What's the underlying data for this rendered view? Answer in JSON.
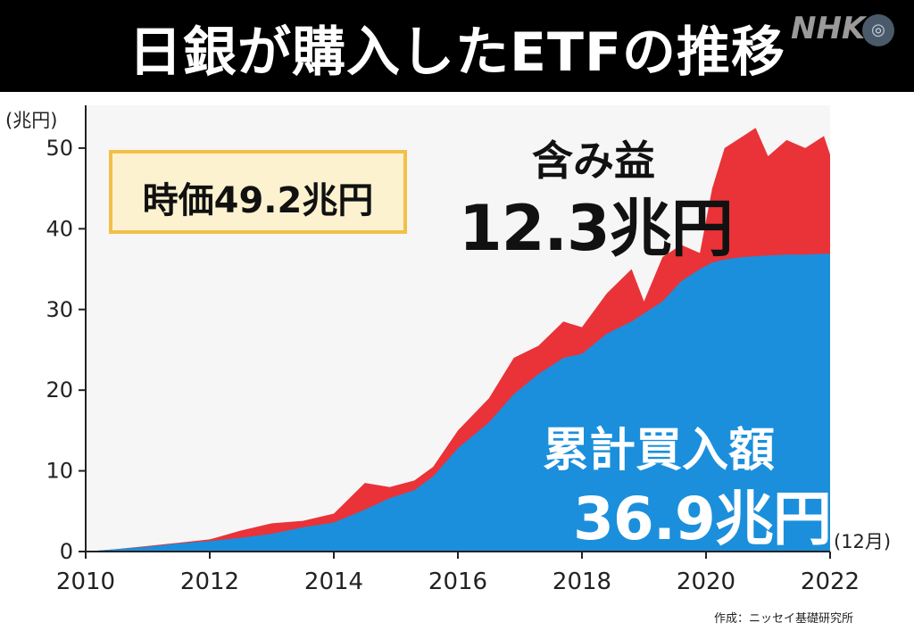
{
  "title": "日銀が購入したETFの推移",
  "logo": "NHK",
  "source": "作成：ニッセイ基礎研究所",
  "colors": {
    "cumulative": "#1b8fdc",
    "gain": "#e93338",
    "box_border": "#f2c04a",
    "box_fill": "#fcf2d0"
  },
  "annotations": {
    "market_value": "時価49.2兆円",
    "gain_label": "含み益",
    "gain_value": "12.3兆円",
    "cumulative_label": "累計買入額",
    "cumulative_value": "36.9兆円"
  },
  "chart_data": {
    "type": "area",
    "ylabel": "(兆円)",
    "xlabel": "(12月)",
    "ylim": [
      0,
      55
    ],
    "xlim": [
      2010,
      2022
    ],
    "yticks": [
      0,
      10,
      20,
      30,
      40,
      50
    ],
    "xticks": [
      2010,
      2012,
      2014,
      2016,
      2018,
      2020,
      2022
    ],
    "x": [
      2010.0,
      2010.5,
      2011.0,
      2011.5,
      2012.0,
      2012.5,
      2013.0,
      2013.5,
      2014.0,
      2014.5,
      2014.9,
      2015.3,
      2015.6,
      2016.0,
      2016.5,
      2016.9,
      2017.3,
      2017.7,
      2018.0,
      2018.4,
      2018.8,
      2019.0,
      2019.3,
      2019.6,
      2019.9,
      2020.1,
      2020.3,
      2020.6,
      2020.8,
      2021.0,
      2021.3,
      2021.6,
      2021.9,
      2022.0
    ],
    "series": [
      {
        "name": "累計買入額",
        "values": [
          0,
          0.3,
          0.6,
          1.0,
          1.3,
          1.7,
          2.2,
          3.0,
          3.6,
          5.2,
          6.6,
          7.6,
          9.3,
          12.8,
          16.0,
          19.5,
          22.0,
          24.0,
          24.5,
          27.0,
          28.5,
          29.5,
          31.0,
          33.5,
          35.0,
          35.8,
          36.2,
          36.5,
          36.6,
          36.7,
          36.8,
          36.8,
          36.9,
          36.9
        ]
      },
      {
        "name": "時価",
        "values": [
          0,
          0.3,
          0.7,
          1.1,
          1.5,
          2.6,
          3.5,
          3.8,
          4.7,
          8.5,
          8.0,
          8.8,
          10.5,
          15.0,
          19.0,
          24.0,
          25.5,
          28.5,
          27.8,
          32.0,
          35.0,
          31.0,
          36.5,
          38.0,
          37.0,
          45.0,
          50.0,
          51.5,
          52.5,
          49.0,
          51.0,
          50.0,
          51.5,
          49.2
        ]
      }
    ]
  }
}
